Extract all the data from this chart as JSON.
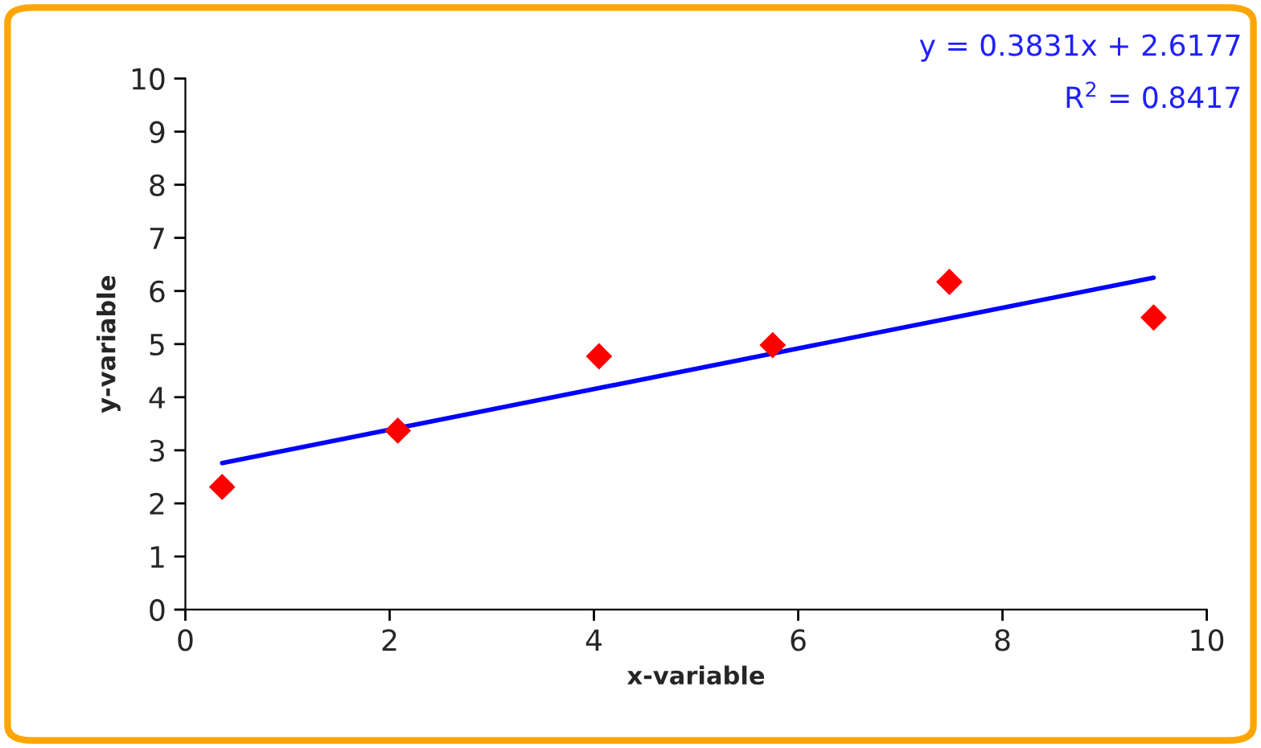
{
  "chart_data": {
    "type": "scatter",
    "xlabel": "x-variable",
    "ylabel": "y-variable",
    "x": [
      0.36,
      2.08,
      4.05,
      5.75,
      7.48,
      9.48
    ],
    "series": [
      {
        "type": "scatter",
        "color": "#ff0000",
        "marker": "diamond",
        "values": [
          2.31,
          3.37,
          4.77,
          4.98,
          6.17,
          5.5
        ]
      },
      {
        "type": "line",
        "color": "#0000ff",
        "line_style": "solid",
        "x": [
          0.36,
          9.48
        ],
        "values": [
          2.76,
          6.25
        ]
      }
    ],
    "xlim": [
      0,
      10
    ],
    "xticks": [
      0,
      2,
      4,
      6,
      8,
      10
    ],
    "ylim": [
      0,
      10
    ],
    "yticks": [
      0,
      1,
      2,
      3,
      4,
      5,
      6,
      7,
      8,
      9,
      10
    ],
    "grid": false,
    "legend": false,
    "annotations": [
      "y = 0.3831x + 2.6177",
      "R$^{2}$ = 0.8417"
    ]
  }
}
